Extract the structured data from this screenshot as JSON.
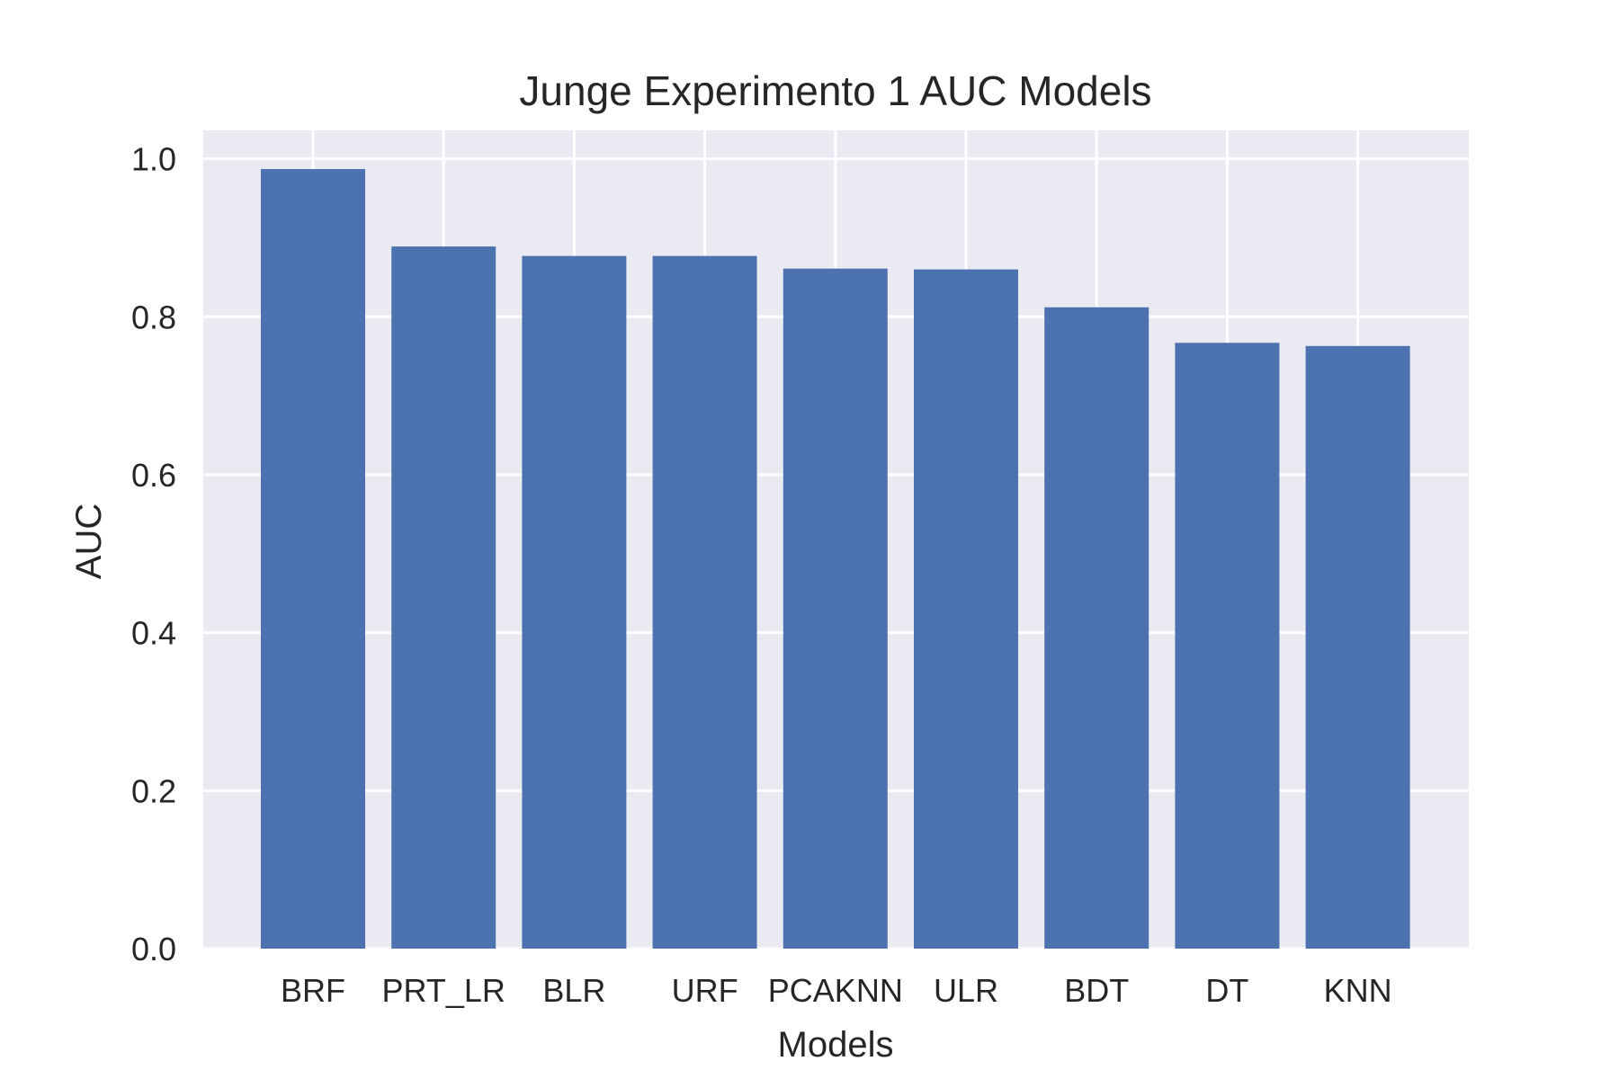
{
  "chart_data": {
    "type": "bar",
    "title": "Junge Experimento 1 AUC Models",
    "xlabel": "Models",
    "ylabel": "AUC",
    "categories": [
      "BRF",
      "PRT_LR",
      "BLR",
      "URF",
      "PCAKNN",
      "ULR",
      "BDT",
      "DT",
      "KNN"
    ],
    "values": [
      0.987,
      0.889,
      0.877,
      0.877,
      0.861,
      0.86,
      0.812,
      0.767,
      0.763
    ],
    "ylim": [
      0,
      1.036
    ],
    "yticks": [
      "0.0",
      "0.2",
      "0.4",
      "0.6",
      "0.8",
      "1.0"
    ],
    "grid": true,
    "colors": {
      "bar": "#4c72b0",
      "background": "#eaeaf2",
      "grid": "#ffffff"
    }
  }
}
